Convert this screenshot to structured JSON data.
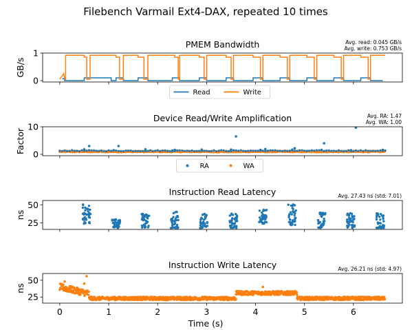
{
  "figure_title": "Filebench Varmail Ext4-DAX, repeated 10 times",
  "shared_xlabel": "Time (s)",
  "colors": {
    "blue": "#1f77b4",
    "orange": "#ff7f0e"
  },
  "chart_data": [
    {
      "type": "line",
      "title": "PMEM Bandwidth",
      "ylabel": "GB/s",
      "ylim": [
        -0.05,
        1.0
      ],
      "xlim": [
        -0.35,
        7.0
      ],
      "yticks": [
        0,
        1
      ],
      "xticks": [
        0,
        1,
        2,
        3,
        4,
        5,
        6
      ],
      "legend": {
        "placement": "bottom-center",
        "entries": [
          "Read",
          "Write"
        ]
      },
      "annotation": [
        "Avg. read: 0.045 GB/s",
        "Avg. write: 0.753 GB/s"
      ],
      "series": [
        {
          "name": "Read",
          "color": "#1f77b4",
          "x": [
            0.05,
            0.1,
            0.1,
            0.5,
            0.5,
            1.05,
            1.05,
            1.15,
            1.15,
            1.3,
            1.3,
            1.6,
            1.6,
            1.8,
            1.8,
            2.3,
            2.3,
            2.45,
            2.45,
            2.85,
            2.85,
            3.0,
            3.0,
            3.4,
            3.4,
            3.55,
            3.55,
            3.95,
            3.95,
            4.15,
            4.15,
            4.5,
            4.5,
            4.7,
            4.7,
            5.05,
            5.05,
            5.25,
            5.25,
            5.6,
            5.6,
            5.8,
            5.8,
            6.15,
            6.15,
            6.35,
            6.35,
            6.6
          ],
          "values": [
            0.07,
            0.07,
            0.0,
            0.0,
            0.1,
            0.1,
            0.0,
            0.0,
            0.1,
            0.1,
            0.0,
            0.0,
            0.1,
            0.1,
            0.0,
            0.0,
            0.1,
            0.1,
            0.0,
            0.0,
            0.1,
            0.1,
            0.0,
            0.0,
            0.1,
            0.1,
            0.0,
            0.0,
            0.1,
            0.1,
            0.0,
            0.0,
            0.1,
            0.1,
            0.0,
            0.0,
            0.1,
            0.1,
            0.0,
            0.0,
            0.1,
            0.1,
            0.0,
            0.0,
            0.1,
            0.1,
            0.0,
            0.0
          ]
        },
        {
          "name": "Write",
          "color": "#ff7f0e",
          "x": [
            0.0,
            0.08,
            0.1,
            0.12,
            0.12,
            0.5,
            0.5,
            0.55,
            0.55,
            0.62,
            0.62,
            1.15,
            1.15,
            1.22,
            1.22,
            1.3,
            1.3,
            1.6,
            1.6,
            1.72,
            1.72,
            1.8,
            1.8,
            2.35,
            2.35,
            2.42,
            2.42,
            2.45,
            2.45,
            2.85,
            2.85,
            2.95,
            2.95,
            3.0,
            3.0,
            3.4,
            3.4,
            3.5,
            3.5,
            3.55,
            3.55,
            3.95,
            3.95,
            4.1,
            4.1,
            4.15,
            4.15,
            4.5,
            4.5,
            4.65,
            4.65,
            4.7,
            4.7,
            5.05,
            5.05,
            5.2,
            5.2,
            5.25,
            5.25,
            5.6,
            5.6,
            5.75,
            5.75,
            5.8,
            5.8,
            6.15,
            6.15,
            6.3,
            6.3,
            6.35,
            6.35,
            6.65
          ],
          "values": [
            0.05,
            0.25,
            0.08,
            0.05,
            0.92,
            0.92,
            0.85,
            0.85,
            0.05,
            0.05,
            0.92,
            0.92,
            0.85,
            0.85,
            0.05,
            0.05,
            0.92,
            0.92,
            0.85,
            0.85,
            0.05,
            0.05,
            0.92,
            0.92,
            0.85,
            0.85,
            0.05,
            0.05,
            0.92,
            0.92,
            0.85,
            0.85,
            0.05,
            0.05,
            0.92,
            0.92,
            0.85,
            0.85,
            0.05,
            0.05,
            0.92,
            0.92,
            0.85,
            0.85,
            0.05,
            0.05,
            0.92,
            0.92,
            0.85,
            0.85,
            0.05,
            0.05,
            0.92,
            0.92,
            0.85,
            0.85,
            0.05,
            0.05,
            0.92,
            0.92,
            0.85,
            0.85,
            0.05,
            0.05,
            0.92,
            0.92,
            0.85,
            0.85,
            0.05,
            0.05,
            0.92,
            0.92
          ]
        }
      ]
    },
    {
      "type": "scatter",
      "title": "Device Read/Write Amplification",
      "ylabel": "Factor",
      "ylim": [
        -0.5,
        10.0
      ],
      "xlim": [
        -0.35,
        7.0
      ],
      "yticks": [
        0,
        10
      ],
      "xticks": [
        0,
        1,
        2,
        3,
        4,
        5,
        6
      ],
      "legend": {
        "placement": "bottom-center",
        "entries": [
          "RA",
          "WA"
        ]
      },
      "annotation": [
        "Avg. RA: 1.47",
        "Avg. WA: 1.00"
      ],
      "baseline": {
        "RA": 1.3,
        "WA": 1.0,
        "x_range": [
          0.0,
          6.65
        ]
      },
      "series": [
        {
          "name": "RA",
          "color": "#1f77b4",
          "points": [
            [
              0.6,
              3.0
            ],
            [
              1.2,
              3.0
            ],
            [
              1.75,
              1.8
            ],
            [
              2.35,
              1.6
            ],
            [
              2.9,
              1.7
            ],
            [
              3.6,
              6.5
            ],
            [
              4.2,
              1.9
            ],
            [
              4.8,
              2.2
            ],
            [
              5.4,
              4.0
            ],
            [
              6.05,
              9.7
            ],
            [
              6.6,
              1.6
            ],
            [
              0.5,
              1.8
            ],
            [
              1.1,
              1.5
            ],
            [
              2.3,
              1.4
            ],
            [
              3.5,
              1.7
            ],
            [
              4.1,
              1.6
            ],
            [
              4.75,
              1.7
            ],
            [
              5.35,
              1.6
            ],
            [
              5.95,
              1.5
            ]
          ]
        },
        {
          "name": "WA",
          "color": "#ff7f0e",
          "points": []
        }
      ]
    },
    {
      "type": "scatter",
      "title": "Instruction Read Latency",
      "ylabel": "ns",
      "ylim": [
        16,
        56
      ],
      "xlim": [
        -0.35,
        7.0
      ],
      "yticks": [
        25,
        50
      ],
      "xticks": [
        0,
        1,
        2,
        3,
        4,
        5,
        6
      ],
      "annotation": [
        "Avg. 27.43 ns (std: 7.01)"
      ],
      "clusters": [
        {
          "center": 0.55,
          "min": 24,
          "max": 52
        },
        {
          "center": 1.15,
          "min": 18,
          "max": 30
        },
        {
          "center": 1.75,
          "min": 18,
          "max": 38
        },
        {
          "center": 2.35,
          "min": 18,
          "max": 44
        },
        {
          "center": 2.95,
          "min": 18,
          "max": 38
        },
        {
          "center": 3.55,
          "min": 18,
          "max": 38
        },
        {
          "center": 4.15,
          "min": 24,
          "max": 44
        },
        {
          "center": 4.75,
          "min": 22,
          "max": 53
        },
        {
          "center": 5.35,
          "min": 18,
          "max": 40
        },
        {
          "center": 5.95,
          "min": 18,
          "max": 40
        },
        {
          "center": 6.55,
          "min": 18,
          "max": 40
        }
      ],
      "series": [
        {
          "name": "",
          "color": "#1f77b4"
        }
      ]
    },
    {
      "type": "scatter",
      "title": "Instruction Write Latency",
      "ylabel": "ns",
      "ylim": [
        16,
        60
      ],
      "xlim": [
        -0.35,
        7.0
      ],
      "yticks": [
        25,
        50
      ],
      "xticks": [
        0,
        1,
        2,
        3,
        4,
        5,
        6
      ],
      "annotation": [
        "Avg. 26.21 ns (std: 4.97)"
      ],
      "segments": [
        {
          "x0": 0.0,
          "x1": 0.6,
          "y0": 40,
          "y1": 30,
          "spread": 5
        },
        {
          "x0": 0.6,
          "x1": 3.6,
          "y0": 23,
          "y1": 23,
          "spread": 2.5
        },
        {
          "x0": 3.6,
          "x1": 4.85,
          "y0": 31,
          "y1": 31,
          "spread": 3
        },
        {
          "x0": 4.85,
          "x1": 6.65,
          "y0": 23,
          "y1": 23,
          "spread": 2.5
        }
      ],
      "outliers": [
        [
          0.55,
          56
        ],
        [
          0.1,
          48
        ],
        [
          4.15,
          40
        ],
        [
          0.5,
          45
        ]
      ],
      "series": [
        {
          "name": "",
          "color": "#ff7f0e"
        }
      ]
    }
  ]
}
